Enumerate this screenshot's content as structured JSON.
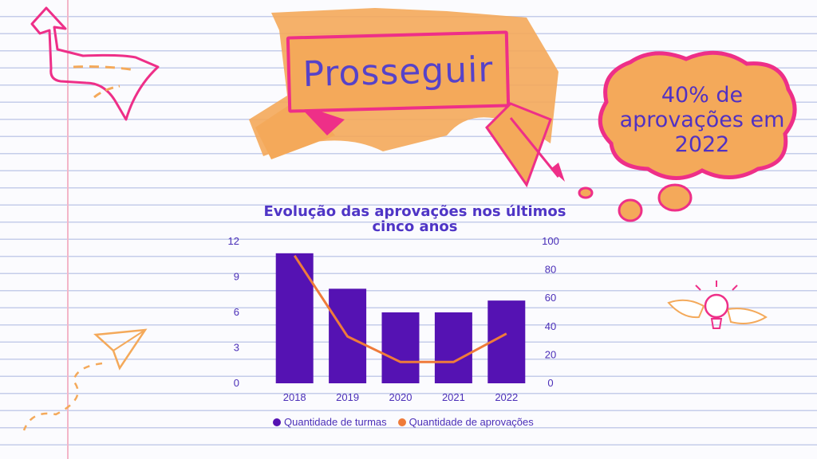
{
  "header": {
    "ribbon_label": "Prosseguir"
  },
  "callout": {
    "text": "40% de aprovações em 2022"
  },
  "colors": {
    "bars": "#5512b3",
    "line": "#ef7b3a",
    "text": "#4b2fb8",
    "accent_pink": "#ee2f88",
    "accent_orange": "#f4a95a"
  },
  "chart_data": {
    "type": "bar",
    "title": "Evolução das aprovações nos últimos cinco anos",
    "categories": [
      "2018",
      "2019",
      "2020",
      "2021",
      "2022"
    ],
    "series": [
      {
        "name": "Quantidade de turmas",
        "type": "bar",
        "axis": "left",
        "values": [
          11,
          8,
          6,
          6,
          7
        ]
      },
      {
        "name": "Quantidade de aprovações",
        "type": "line",
        "axis": "right",
        "values": [
          90,
          33,
          15,
          15,
          35
        ]
      }
    ],
    "y_left": {
      "min": 0,
      "max": 12,
      "ticks": [
        0,
        3,
        6,
        9,
        12
      ]
    },
    "y_right": {
      "min": 0,
      "max": 100,
      "ticks": [
        0,
        20,
        40,
        60,
        80,
        100
      ]
    },
    "grid": false,
    "legend_position": "bottom"
  }
}
